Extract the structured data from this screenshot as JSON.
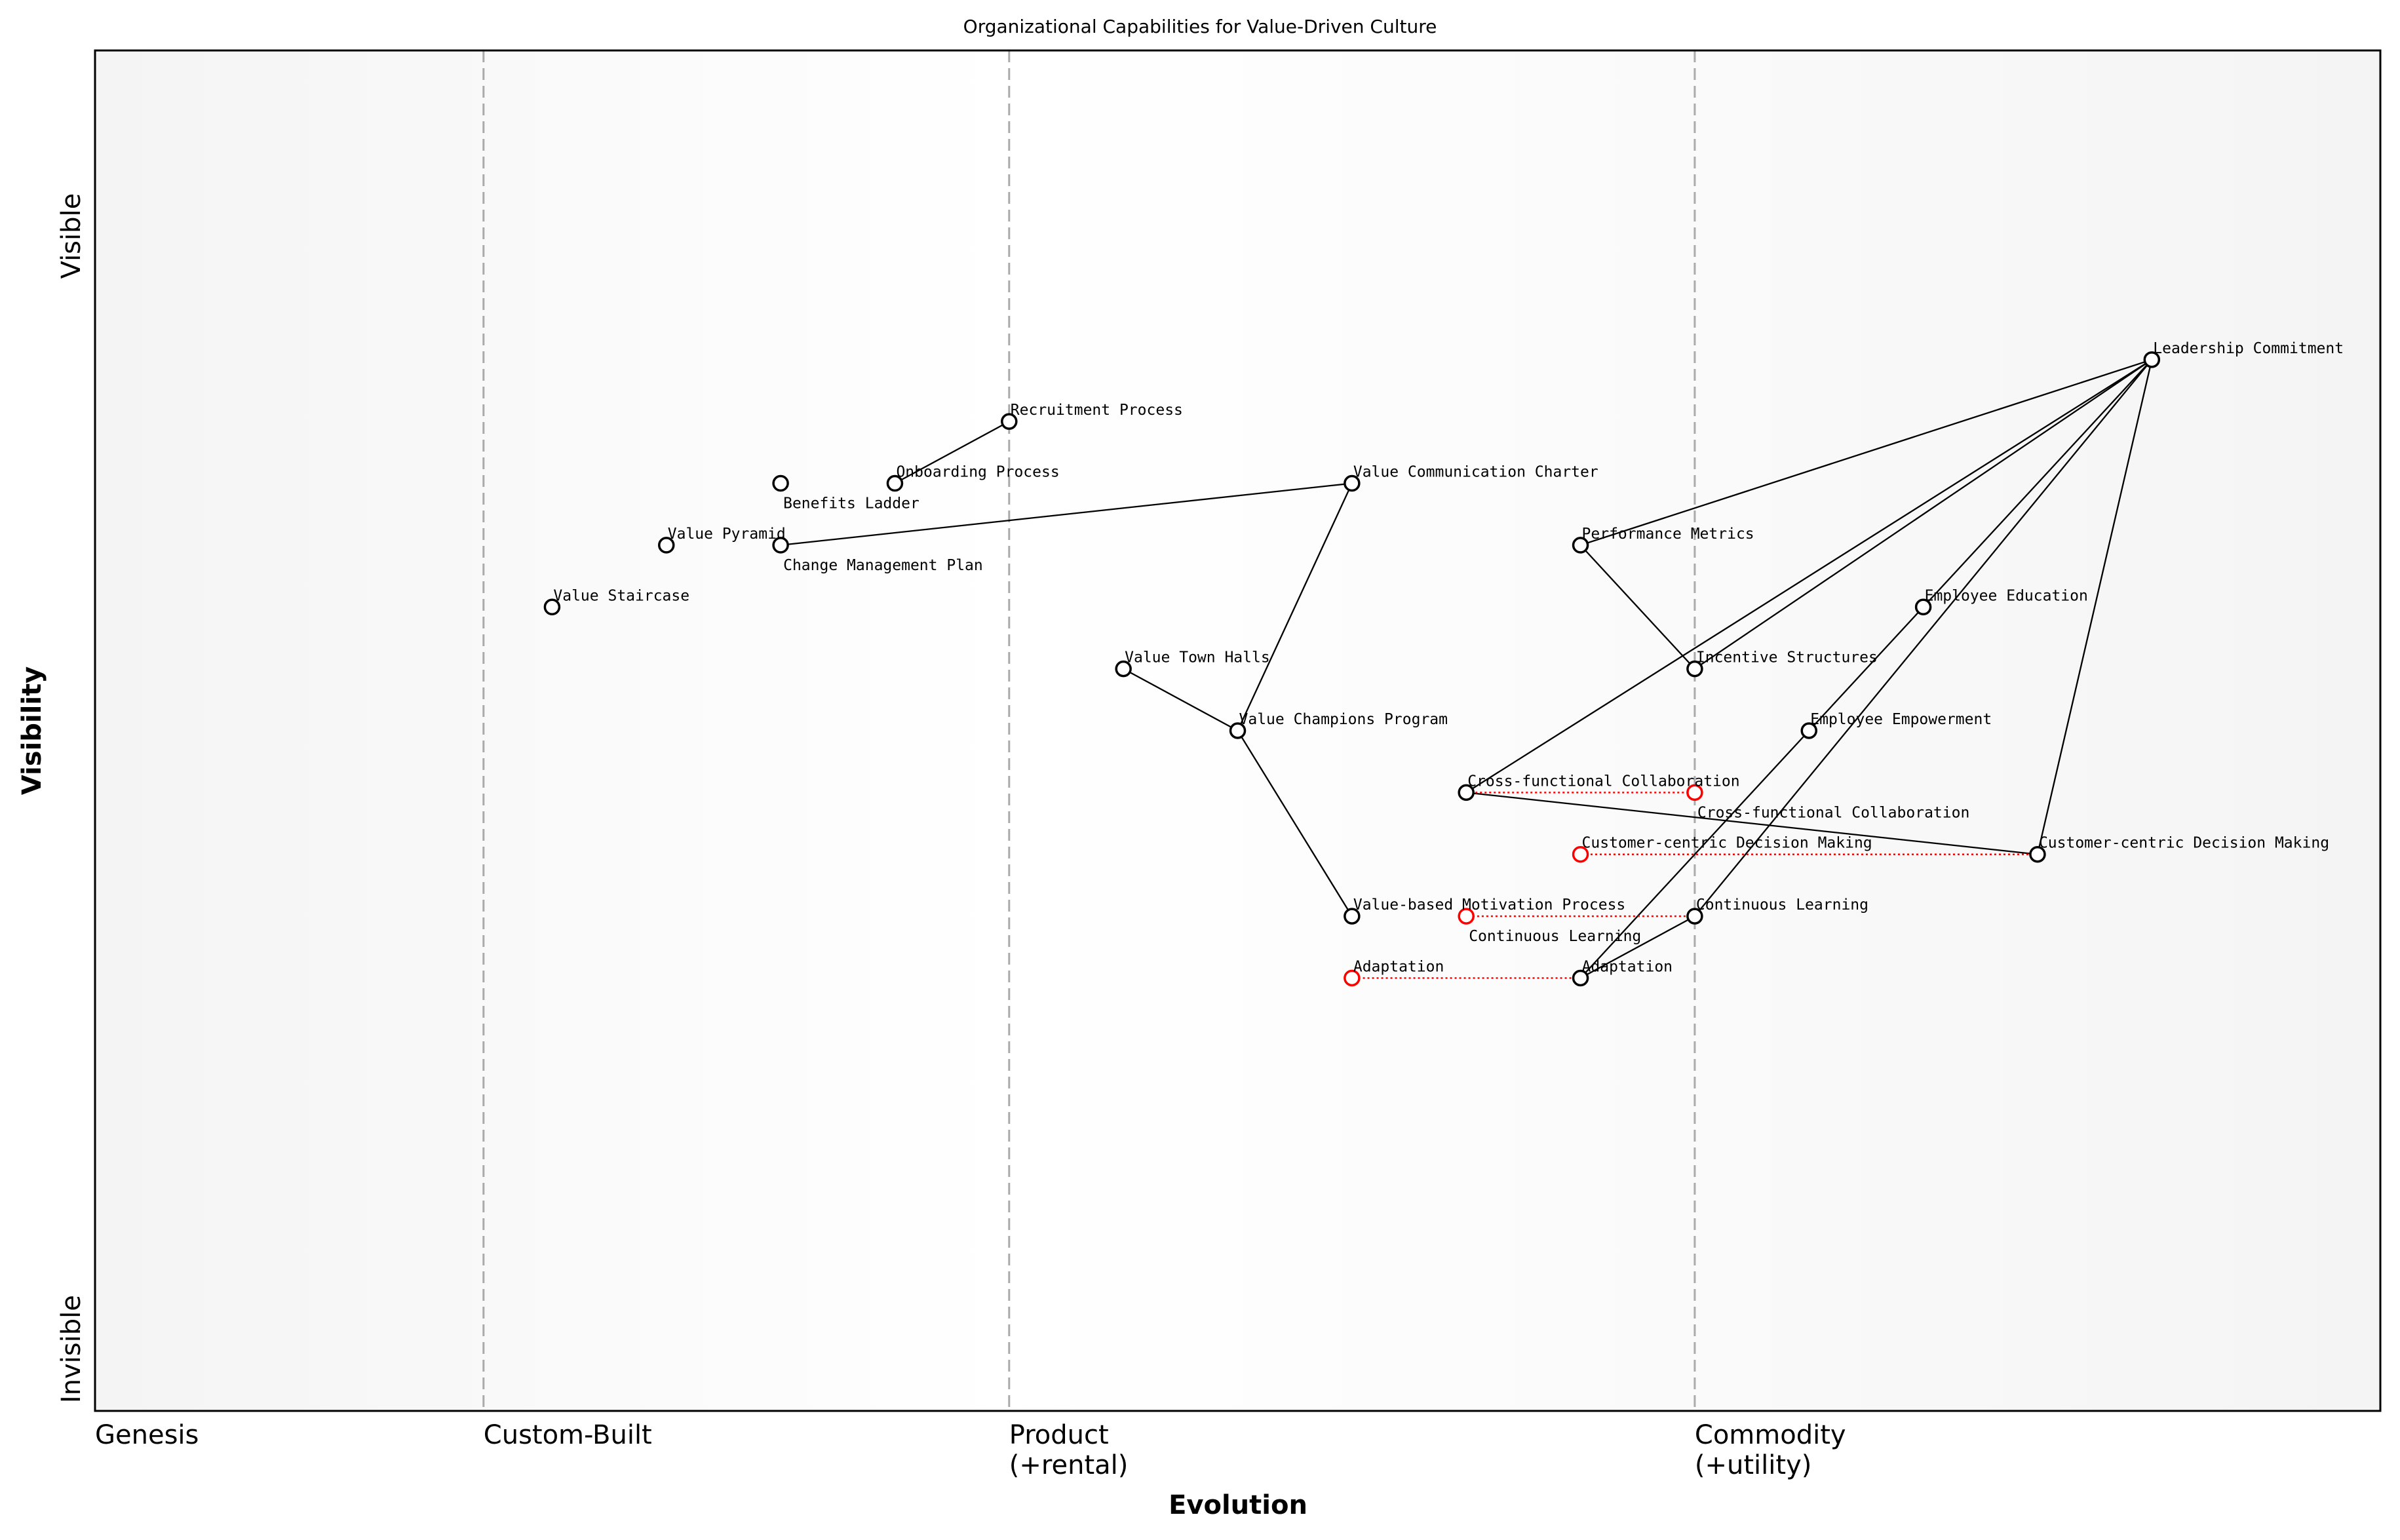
{
  "chart_data": {
    "type": "wardley-map",
    "title": "Organizational Capabilities for Value-Driven Culture",
    "xlabel": "Evolution",
    "ylabel": "Visibility",
    "xlim": [
      0,
      1
    ],
    "ylim": [
      0,
      1.1
    ],
    "x_stages": [
      {
        "label": "Genesis",
        "x": 0.0,
        "line": false
      },
      {
        "label": "Custom-Built",
        "x": 0.17,
        "line": true
      },
      {
        "label": "Product\n(+rental)",
        "x": 0.4,
        "line": true
      },
      {
        "label": "Commodity\n(+utility)",
        "x": 0.7,
        "line": true
      }
    ],
    "y_ticks": [
      {
        "label": "Visible",
        "y": 0.95
      },
      {
        "label": "Invisible",
        "y": 0.05
      }
    ],
    "components": [
      {
        "name": "Leadership Commitment",
        "x": 0.9,
        "y": 0.85
      },
      {
        "name": "Recruitment Process",
        "x": 0.4,
        "y": 0.8
      },
      {
        "name": "Onboarding Process",
        "x": 0.35,
        "y": 0.75
      },
      {
        "name": "Benefits Ladder",
        "x": 0.3,
        "y": 0.75
      },
      {
        "name": "Value Communication Charter",
        "x": 0.55,
        "y": 0.75
      },
      {
        "name": "Performance Metrics",
        "x": 0.65,
        "y": 0.7
      },
      {
        "name": "Value Pyramid",
        "x": 0.25,
        "y": 0.7
      },
      {
        "name": "Change Management Plan",
        "x": 0.3,
        "y": 0.7
      },
      {
        "name": "Value Staircase",
        "x": 0.2,
        "y": 0.65
      },
      {
        "name": "Employee Education",
        "x": 0.8,
        "y": 0.65
      },
      {
        "name": "Value Town Halls",
        "x": 0.45,
        "y": 0.6
      },
      {
        "name": "Incentive Structures",
        "x": 0.7,
        "y": 0.6
      },
      {
        "name": "Value Champions Program",
        "x": 0.5,
        "y": 0.55
      },
      {
        "name": "Employee Empowerment",
        "x": 0.75,
        "y": 0.55
      },
      {
        "name": "Cross-functional Collaboration",
        "x": 0.6,
        "y": 0.5
      },
      {
        "name": "Customer-centric Decision Making",
        "x": 0.85,
        "y": 0.45
      },
      {
        "name": "Value-based Motivation Process",
        "x": 0.55,
        "y": 0.4
      },
      {
        "name": "Continuous Learning",
        "x": 0.7,
        "y": 0.4
      },
      {
        "name": "Adaptation",
        "x": 0.65,
        "y": 0.35
      }
    ],
    "evolutions": [
      {
        "name": "Cross-functional Collaboration",
        "from_x": 0.6,
        "x": 0.7,
        "y": 0.5
      },
      {
        "name": "Customer-centric Decision Making",
        "from_x": 0.85,
        "x": 0.65,
        "y": 0.45
      },
      {
        "name": "Continuous Learning",
        "from_x": 0.7,
        "x": 0.6,
        "y": 0.4
      },
      {
        "name": "Adaptation",
        "from_x": 0.65,
        "x": 0.55,
        "y": 0.35
      }
    ],
    "links": [
      [
        "Recruitment Process",
        "Onboarding Process"
      ],
      [
        "Change Management Plan",
        "Value Communication Charter"
      ],
      [
        "Value Communication Charter",
        "Value Champions Program"
      ],
      [
        "Value Town Halls",
        "Value Champions Program"
      ],
      [
        "Value Champions Program",
        "Value-based Motivation Process"
      ],
      [
        "Leadership Commitment",
        "Performance Metrics"
      ],
      [
        "Performance Metrics",
        "Incentive Structures"
      ],
      [
        "Leadership Commitment",
        "Incentive Structures"
      ],
      [
        "Leadership Commitment",
        "Cross-functional Collaboration"
      ],
      [
        "Cross-functional Collaboration",
        "Customer-centric Decision Making"
      ],
      [
        "Leadership Commitment",
        "Customer-centric Decision Making"
      ],
      [
        "Leadership Commitment",
        "Employee Education"
      ],
      [
        "Employee Education",
        "Employee Empowerment"
      ],
      [
        "Employee Empowerment",
        "Adaptation"
      ],
      [
        "Leadership Commitment",
        "Continuous Learning"
      ],
      [
        "Continuous Learning",
        "Adaptation"
      ]
    ],
    "colors": {
      "component": "#000000",
      "evolution": "#ff0000",
      "stage_line": "#aaaaaa",
      "background": "#f5f5f5"
    }
  }
}
